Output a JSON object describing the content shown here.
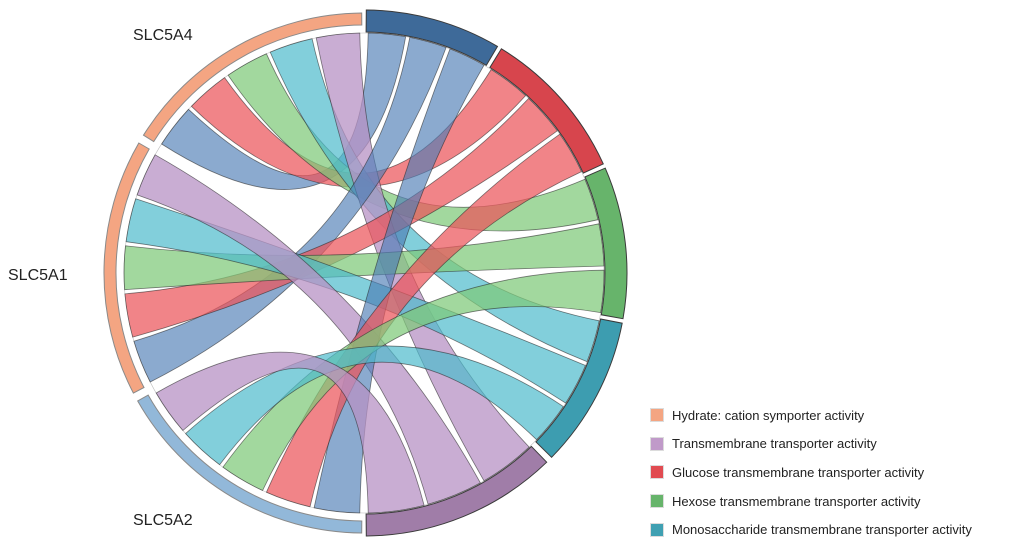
{
  "genes": [
    {
      "id": "SLC5A4",
      "label": "SLC5A4",
      "color": "#f4a582"
    },
    {
      "id": "SLC5A1",
      "label": "SLC5A1",
      "color": "#f4a582"
    },
    {
      "id": "SLC5A2",
      "label": "SLC5A2",
      "color": "#92b8d9"
    }
  ],
  "terms": [
    {
      "id": "hydrate",
      "label": "Hydrate: cation symporter activity",
      "color": "#f4a582"
    },
    {
      "id": "transmembrane",
      "label": "Transmembrane transporter activity",
      "color": "#c09ac9"
    },
    {
      "id": "glucose",
      "label": "Glucose transmembrane transporter activity",
      "color": "#e14b51"
    },
    {
      "id": "hexose",
      "label": "Hexose transmembrane transporter activity",
      "color": "#67b46b"
    },
    {
      "id": "monosaccharide",
      "label": "Monosaccharide transmembrane transporter activity",
      "color": "#3fa0b2"
    }
  ],
  "chart_data": {
    "type": "chord",
    "gene_terms": {
      "SLC5A4": [
        "hydrate",
        "transmembrane",
        "glucose",
        "hexose",
        "monosaccharide"
      ],
      "SLC5A1": [
        "hydrate",
        "transmembrane",
        "glucose",
        "hexose",
        "monosaccharide"
      ],
      "SLC5A2": [
        "hydrate",
        "transmembrane",
        "glucose",
        "hexose",
        "monosaccharide"
      ]
    }
  }
}
